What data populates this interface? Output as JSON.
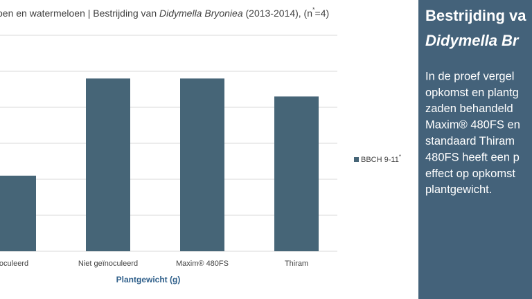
{
  "chart_data": {
    "type": "bar",
    "title_parts": [
      "oen en watermeloen | Bestrijding van ",
      "Didymella Bryoniea",
      " (2013-2014), (n",
      "*",
      "=4)"
    ],
    "categories": [
      "oculeerd",
      "Niet geïnoculeerd",
      "Maxim® 480FS",
      "Thiram"
    ],
    "series": [
      {
        "name": "BBCH 9-11",
        "name_mark": "*",
        "color": "#466577",
        "values": [
          2.1,
          4.8,
          4.8,
          4.3
        ]
      }
    ],
    "xlabel": "Plantgewicht (g)",
    "ylim": [
      0,
      6
    ],
    "yticks": [
      0,
      1,
      2,
      3,
      4,
      5,
      6
    ],
    "show_ytick_labels": false,
    "grid": true
  },
  "panel": {
    "title_lines": [
      "Bestrijding va",
      "Didymella Br"
    ],
    "body_lines": [
      "In de proef vergel",
      "opkomst en plantg",
      "zaden behandeld",
      "Maxim® 480FS en",
      "standaard Thiram",
      "480FS heeft een p",
      "effect op opkomst",
      "plantgewicht."
    ]
  }
}
